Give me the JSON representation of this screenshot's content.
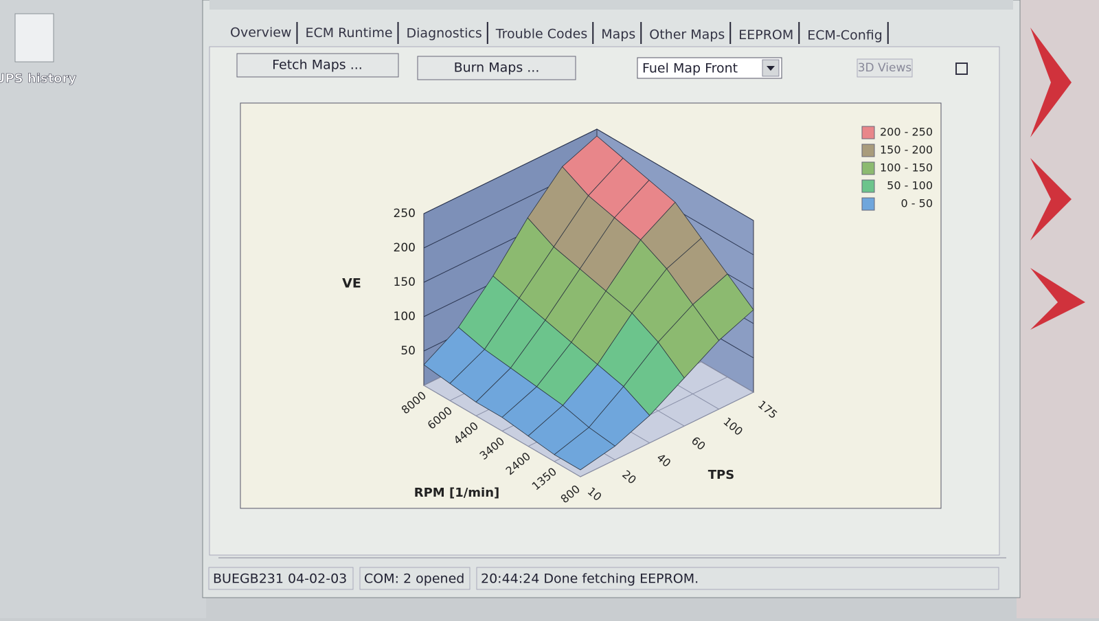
{
  "desktop": {
    "icon_label": "UPS history"
  },
  "tabs": [
    "Overview",
    "ECM Runtime",
    "Diagnostics",
    "Trouble Codes",
    "Maps",
    "Other Maps",
    "EEPROM",
    "ECM-Config"
  ],
  "buttons": {
    "fetch": "Fetch Maps ...",
    "burn": "Burn Maps ...",
    "views": "3D Views"
  },
  "map_select": "Fuel Map Front",
  "chart_data": {
    "type": "surface3d",
    "z_label": "VE",
    "x_label": "RPM [1/min]",
    "y_label": "TPS",
    "x_categories": [
      "8000",
      "6000",
      "4400",
      "3400",
      "2400",
      "1350",
      "800"
    ],
    "y_categories": [
      "10",
      "20",
      "40",
      "60",
      "100",
      "175"
    ],
    "zlim": [
      0,
      250
    ],
    "zticks": [
      50,
      100,
      150,
      200,
      250
    ],
    "values": [
      [
        30,
        60,
        110,
        170,
        220,
        240
      ],
      [
        25,
        50,
        100,
        150,
        200,
        230
      ],
      [
        20,
        45,
        90,
        140,
        190,
        220
      ],
      [
        20,
        40,
        80,
        130,
        180,
        210
      ],
      [
        15,
        35,
        70,
        120,
        160,
        180
      ],
      [
        10,
        25,
        60,
        100,
        130,
        150
      ],
      [
        10,
        20,
        40,
        70,
        100,
        120
      ]
    ],
    "bands": [
      {
        "name": "200 - 250",
        "range": [
          200,
          250
        ],
        "color": "#e8868a"
      },
      {
        "name": "150 - 200",
        "range": [
          150,
          200
        ],
        "color": "#a99c7c"
      },
      {
        "name": "100 - 150",
        "range": [
          100,
          150
        ],
        "color": "#8cba70"
      },
      {
        "name": "50 - 100",
        "range": [
          50,
          100
        ],
        "color": "#6cc48c"
      },
      {
        "name": "0 - 50",
        "range": [
          0,
          50
        ],
        "color": "#6fa6dc"
      }
    ]
  },
  "status": [
    "BUEGB231 04-02-03",
    "COM: 2 opened",
    "20:44:24 Done fetching EEPROM."
  ]
}
